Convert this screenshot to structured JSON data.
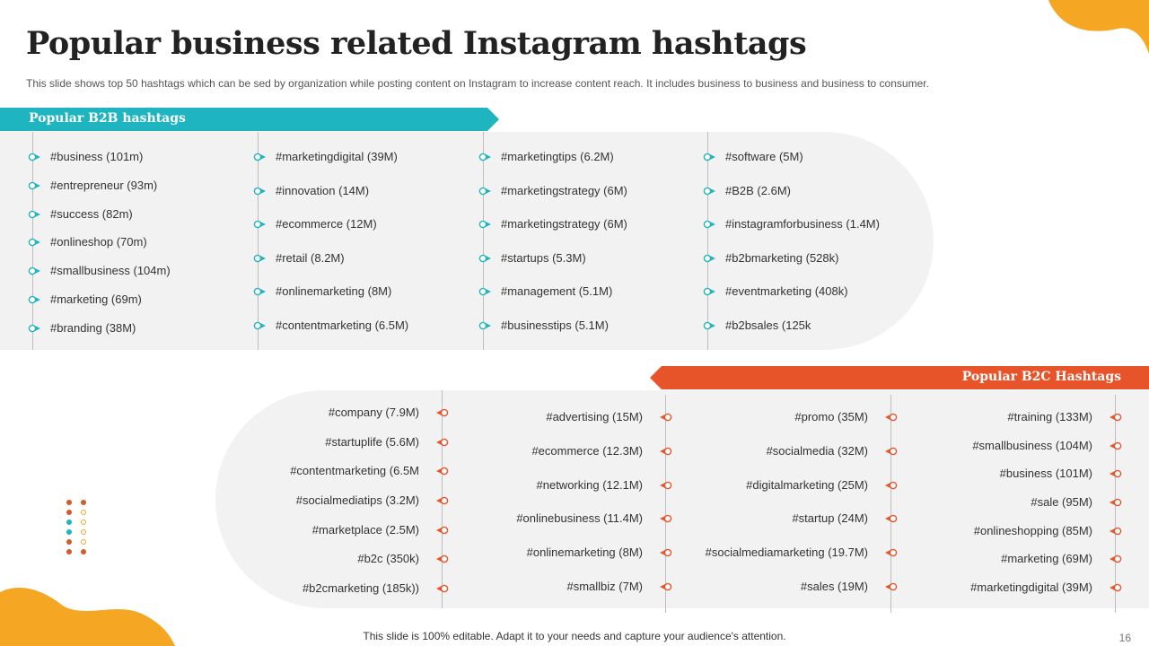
{
  "slide": {
    "title": "Popular business related Instagram hashtags",
    "subtitle": "This slide shows top 50 hashtags which can be sed by organization while posting content on Instagram to increase content reach. It includes business to business and business to consumer.",
    "footer": "This slide is 100% editable. Adapt it to your needs and capture your audience's attention.",
    "page_number": "16"
  },
  "colors": {
    "b2b_accent": "#1fb5c0",
    "b2c_accent": "#e8542a",
    "blob": "#f5a623",
    "panel": "#f2f2f2"
  },
  "b2b": {
    "heading": "Popular B2B hashtags",
    "columns": [
      [
        "#business (101m)",
        "#entrepreneur  (93m)",
        "#success (82m)",
        "#onlineshop (70m)",
        "#smallbusiness (104m)",
        "#marketing (69m)",
        "#branding (38M)"
      ],
      [
        "#marketingdigital (39M)",
        "#innovation (14M)",
        "#ecommerce (12M)",
        "#retail (8.2M)",
        "#onlinemarketing (8M)",
        "#contentmarketing (6.5M)"
      ],
      [
        "#marketingtips (6.2M)",
        "#marketingstrategy (6M)",
        "#marketingstrategy (6M)",
        "#startups (5.3M)",
        "#management (5.1M)",
        "#businesstips (5.1M)"
      ],
      [
        "#software  (5M)",
        "#B2B (2.6M)",
        "#instagramforbusiness (1.4M)",
        "#b2bmarketing (528k)",
        "#eventmarketing  (408k)",
        "#b2bsales (125k"
      ]
    ]
  },
  "b2c": {
    "heading": "Popular B2C Hashtags",
    "columns": [
      [
        "#company (7.9M)",
        "#startuplife (5.6M)",
        "#contentmarketing (6.5M",
        "#socialmediatips (3.2M)",
        "#marketplace (2.5M)",
        "#b2c (350k)",
        "#b2cmarketing (185k))"
      ],
      [
        "#advertising  (15M)",
        "#ecommerce (12.3M)",
        "#networking (12.1M)",
        "#onlinebusiness (11.4M)",
        "#onlinemarketing  (8M)",
        "#smallbiz (7M)"
      ],
      [
        "#promo  (35M)",
        "#socialmedia  (32M)",
        "#digitalmarketing   (25M)",
        "#startup (24M)",
        "#socialmediamarketing  (19.7M)",
        "#sales (19M)"
      ],
      [
        "#training (133M)",
        "#smallbusiness (104M)",
        "#business (101M)",
        "#sale (95M)",
        "#onlineshopping  (85M)",
        "#marketing  (69M)",
        "#marketingdigital  (39M)"
      ]
    ]
  },
  "decor": {
    "dot_rows": [
      [
        "#d35a2a",
        "#d35a2a"
      ],
      [
        "#d35a2a",
        "#f5a623"
      ],
      [
        "#1fb5c0",
        "#f5a623"
      ],
      [
        "#1fb5c0",
        "#f5a623"
      ],
      [
        "#d35a2a",
        "#f5a623"
      ],
      [
        "#d35a2a",
        "#d35a2a"
      ]
    ]
  }
}
